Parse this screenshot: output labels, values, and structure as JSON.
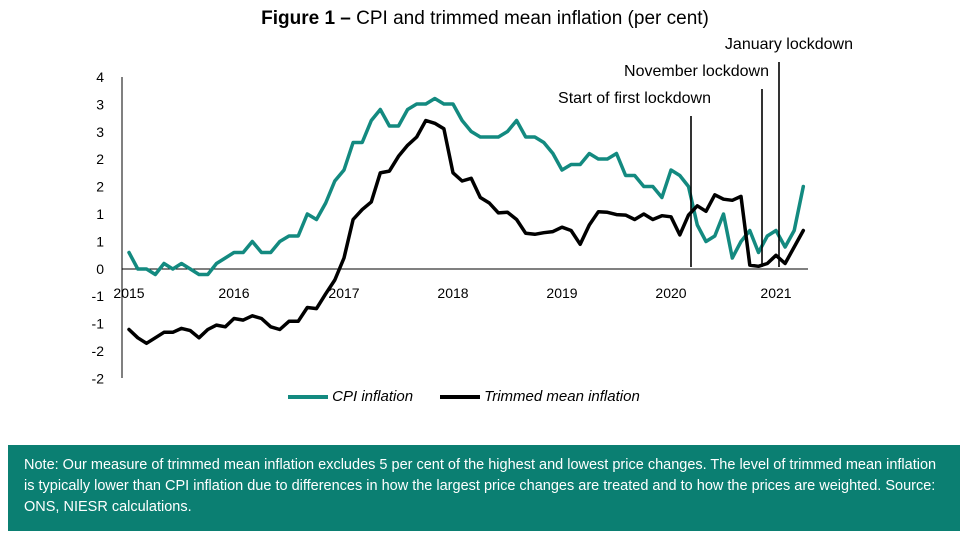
{
  "title_prefix": "Figure 1 –",
  "title_main": "CPI and trimmed mean inflation (per cent)",
  "note": "Note: Our measure of trimmed mean inflation excludes 5 per cent of the highest and lowest price changes. The level of trimmed mean inflation is typically lower than CPI inflation due to differences in how the largest price changes are treated and to how the prices are weighted. Source: ONS, NIESR calculations.",
  "chart_data": {
    "type": "line",
    "title": "Figure 1 – CPI and trimmed mean inflation (per cent)",
    "x_start": "2015-01",
    "x_tick_labels": [
      "2015",
      "2016",
      "2017",
      "2018",
      "2019",
      "2020",
      "2021"
    ],
    "y_tick_labels": [
      "4",
      "3",
      "3",
      "2",
      "2",
      "1",
      "1",
      "0",
      "-1",
      "-1",
      "-2",
      "-2"
    ],
    "ylim": [
      -2.0,
      3.5
    ],
    "grid": false,
    "legend_position": "bottom",
    "series": [
      {
        "name": "CPI inflation",
        "color": "#138a80",
        "values": [
          0.3,
          0.0,
          0.0,
          -0.1,
          0.1,
          0.0,
          0.1,
          0.0,
          -0.1,
          -0.1,
          0.1,
          0.2,
          0.3,
          0.3,
          0.5,
          0.3,
          0.3,
          0.5,
          0.6,
          0.6,
          1.0,
          0.9,
          1.2,
          1.6,
          1.8,
          2.3,
          2.3,
          2.7,
          2.9,
          2.6,
          2.6,
          2.9,
          3.0,
          3.0,
          3.1,
          3.0,
          3.0,
          2.7,
          2.5,
          2.4,
          2.4,
          2.4,
          2.5,
          2.7,
          2.4,
          2.4,
          2.3,
          2.1,
          1.8,
          1.9,
          1.9,
          2.1,
          2.0,
          2.0,
          2.1,
          1.7,
          1.7,
          1.5,
          1.5,
          1.3,
          1.8,
          1.7,
          1.5,
          0.8,
          0.5,
          0.6,
          1.0,
          0.2,
          0.5,
          0.7,
          0.3,
          0.6,
          0.7,
          0.4,
          0.7,
          1.5
        ]
      },
      {
        "name": "Trimmed mean inflation",
        "color": "#000000",
        "values": [
          -1.1,
          -1.25,
          -1.35,
          -1.25,
          -1.15,
          -1.15,
          -1.08,
          -1.12,
          -1.25,
          -1.1,
          -1.02,
          -1.05,
          -0.9,
          -0.93,
          -0.85,
          -0.9,
          -1.05,
          -1.1,
          -0.95,
          -0.95,
          -0.7,
          -0.72,
          -0.45,
          -0.2,
          0.2,
          0.9,
          1.08,
          1.22,
          1.75,
          1.78,
          2.05,
          2.25,
          2.4,
          2.7,
          2.65,
          2.55,
          1.75,
          1.6,
          1.65,
          1.3,
          1.2,
          1.02,
          1.03,
          0.9,
          0.65,
          0.63,
          0.66,
          0.68,
          0.76,
          0.7,
          0.45,
          0.8,
          1.04,
          1.03,
          0.99,
          0.98,
          0.9,
          1.0,
          0.9,
          0.97,
          0.95,
          0.62,
          0.98,
          1.15,
          1.05,
          1.35,
          1.27,
          1.25,
          1.32,
          0.07,
          0.05,
          0.1,
          0.25,
          0.1,
          0.4,
          0.7
        ]
      }
    ],
    "annotations": [
      {
        "label": "Start of first lockdown",
        "x": "2020-03"
      },
      {
        "label": "November lockdown",
        "x": "2020-11"
      },
      {
        "label": "January lockdown",
        "x": "2021-01"
      }
    ]
  }
}
